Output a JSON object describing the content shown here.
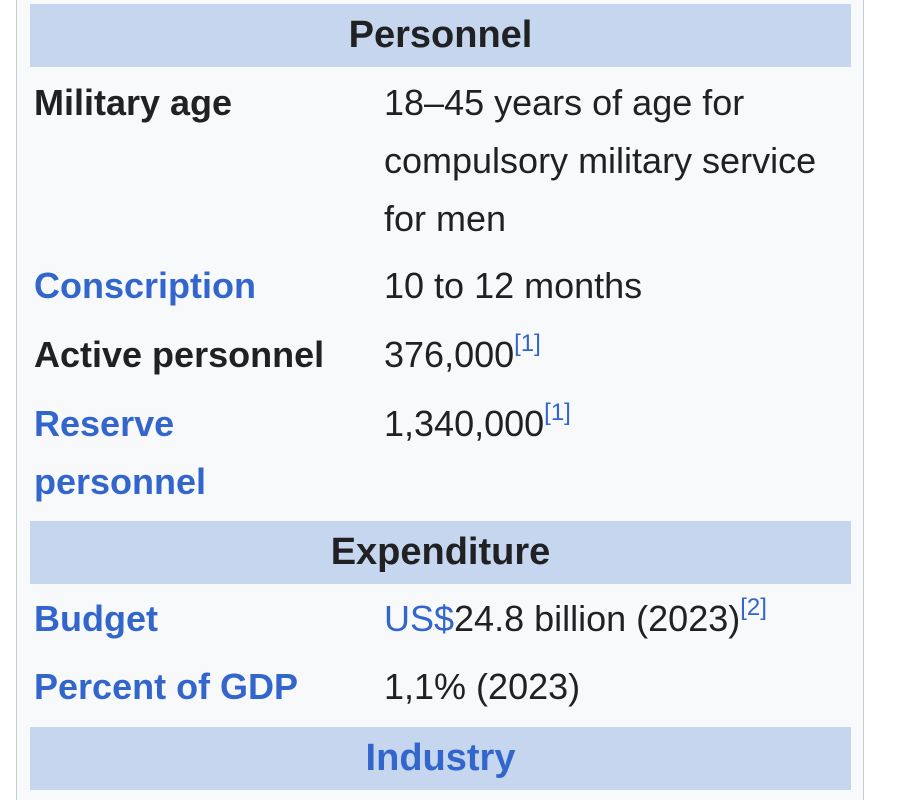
{
  "sections": {
    "personnel": "Personnel",
    "expenditure": "Expenditure",
    "industry": "Industry"
  },
  "rows": {
    "military_age": {
      "label": "Military age",
      "value": "18–45 years of age for compulsory military service for men"
    },
    "conscription": {
      "label": "Conscription",
      "value": "10 to 12 months"
    },
    "active": {
      "label": "Active personnel",
      "value": "376,000",
      "ref": "[1]"
    },
    "reserve": {
      "label": "Reserve personnel",
      "value": "1,340,000",
      "ref": "[1]"
    },
    "budget": {
      "label": "Budget",
      "currency": "US$",
      "value": "24.8 billion (2023)",
      "ref": "[2]"
    },
    "gdp": {
      "label": "Percent of GDP",
      "value": "1,1% (2023)"
    }
  },
  "colors": {
    "header_bg": "#c5d6ee",
    "link": "#3366cc",
    "text": "#202122"
  }
}
